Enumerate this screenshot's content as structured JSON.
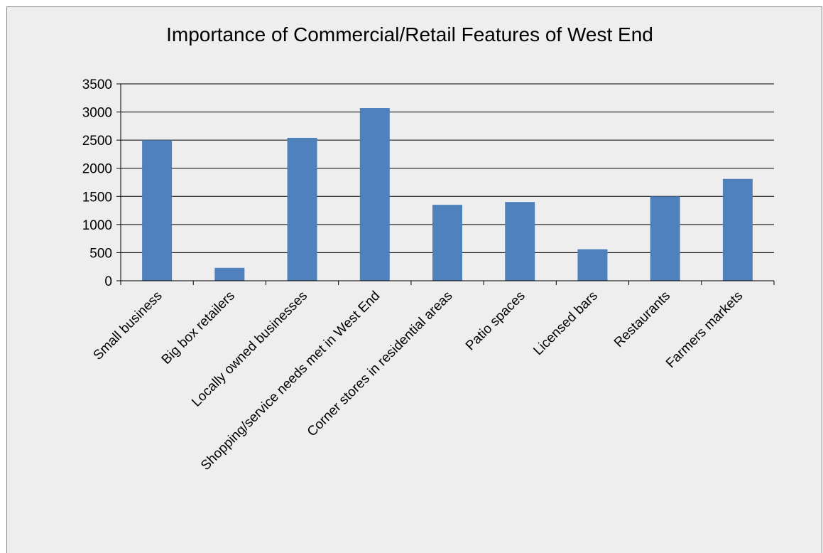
{
  "chart_data": {
    "type": "bar",
    "title": "Importance of Commercial/Retail Features of West End",
    "xlabel": "",
    "ylabel": "",
    "categories": [
      "Small business",
      "Big box retailers",
      "Locally owned businesses",
      "Shopping/service needs met in West End",
      "Corner stores in residential areas",
      "Patio spaces",
      "Licensed bars",
      "Restaurants",
      "Farmers markets"
    ],
    "values": [
      2500,
      230,
      2540,
      3070,
      1350,
      1400,
      560,
      1500,
      1810
    ],
    "ylim": [
      0,
      3500
    ],
    "yticks": [
      0,
      500,
      1000,
      1500,
      2000,
      2500,
      3000,
      3500
    ],
    "grid": true,
    "legend": "none",
    "bar_color": "#4f81bd",
    "background_color": "#eeeeee"
  }
}
